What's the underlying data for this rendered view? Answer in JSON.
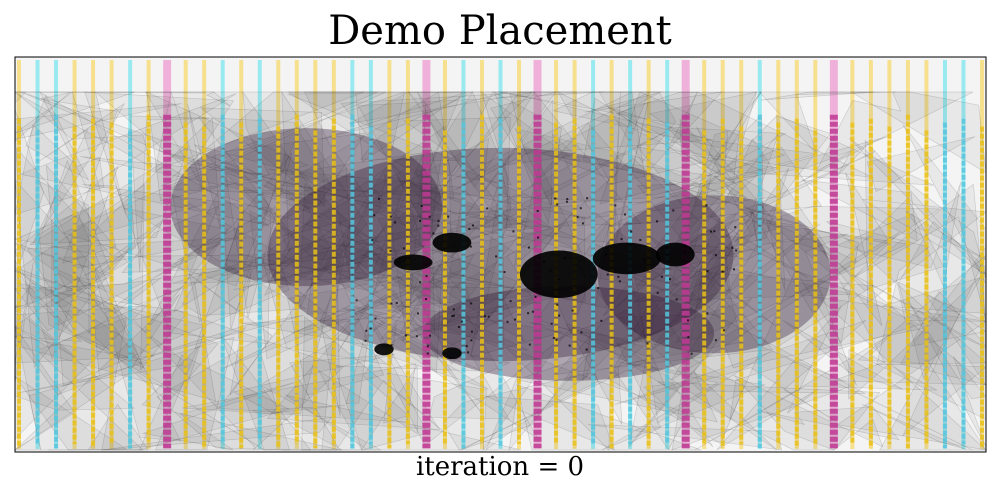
{
  "title": "Demo Placement",
  "caption": "iteration = 0",
  "chart_data": {
    "type": "scatter",
    "title": "Demo Placement",
    "xlabel": "iteration = 0",
    "ylabel": "",
    "grid": false,
    "legend": "none",
    "colors": {
      "background": "#f4f4f4",
      "net": "#5a5a5a",
      "cluster": "#2b1530",
      "dense": "#000000",
      "cell_yellow": "#e9c21c",
      "cell_cyan": "#59c6de",
      "cell_magenta": "#c03a94",
      "row_yellow": "#f6dd82",
      "row_cyan": "#8fe9f0",
      "row_magenta": "#eeaad6"
    },
    "columns": [
      {
        "type": "yellow",
        "y0": 0.06,
        "y1": 0.99
      },
      {
        "type": "cyan",
        "y0": 0.09,
        "y1": 0.98
      },
      {
        "type": "cyan",
        "y0": 0.05,
        "y1": 0.99
      },
      {
        "type": "yellow",
        "y0": 0.08,
        "y1": 0.98
      },
      {
        "type": "yellow",
        "y0": 0.06,
        "y1": 0.99
      },
      {
        "type": "yellow",
        "y0": 0.07,
        "y1": 0.98
      },
      {
        "type": "cyan",
        "y0": 0.09,
        "y1": 0.99
      },
      {
        "type": "yellow",
        "y0": 0.05,
        "y1": 0.98
      },
      {
        "type": "magenta",
        "y0": 0.05,
        "y1": 0.99
      },
      {
        "type": "yellow",
        "y0": 0.07,
        "y1": 0.98
      },
      {
        "type": "yellow",
        "y0": 0.08,
        "y1": 0.99
      },
      {
        "type": "cyan",
        "y0": 0.05,
        "y1": 0.98
      },
      {
        "type": "yellow",
        "y0": 0.07,
        "y1": 0.99
      },
      {
        "type": "cyan",
        "y0": 0.06,
        "y1": 0.97
      },
      {
        "type": "yellow",
        "y0": 0.08,
        "y1": 0.99
      },
      {
        "type": "yellow",
        "y0": 0.05,
        "y1": 0.98
      },
      {
        "type": "yellow",
        "y0": 0.09,
        "y1": 0.99
      },
      {
        "type": "yellow",
        "y0": 0.06,
        "y1": 0.98
      },
      {
        "type": "cyan",
        "y0": 0.05,
        "y1": 0.99
      },
      {
        "type": "cyan",
        "y0": 0.08,
        "y1": 0.98
      },
      {
        "type": "yellow",
        "y0": 0.07,
        "y1": 0.99
      },
      {
        "type": "yellow",
        "y0": 0.06,
        "y1": 0.98
      },
      {
        "type": "magenta",
        "y0": 0.05,
        "y1": 0.99
      },
      {
        "type": "yellow",
        "y0": 0.09,
        "y1": 0.98
      },
      {
        "type": "cyan",
        "y0": 0.07,
        "y1": 0.99
      },
      {
        "type": "yellow",
        "y0": 0.05,
        "y1": 0.98
      },
      {
        "type": "cyan",
        "y0": 0.06,
        "y1": 0.99
      },
      {
        "type": "yellow",
        "y0": 0.08,
        "y1": 0.98
      },
      {
        "type": "magenta",
        "y0": 0.05,
        "y1": 0.99
      },
      {
        "type": "yellow",
        "y0": 0.07,
        "y1": 0.98
      },
      {
        "type": "yellow",
        "y0": 0.06,
        "y1": 0.99
      },
      {
        "type": "cyan",
        "y0": 0.09,
        "y1": 0.98
      },
      {
        "type": "yellow",
        "y0": 0.05,
        "y1": 0.99
      },
      {
        "type": "cyan",
        "y0": 0.08,
        "y1": 0.98
      },
      {
        "type": "yellow",
        "y0": 0.06,
        "y1": 0.99
      },
      {
        "type": "cyan",
        "y0": 0.07,
        "y1": 0.98
      },
      {
        "type": "magenta",
        "y0": 0.05,
        "y1": 0.99
      },
      {
        "type": "yellow",
        "y0": 0.09,
        "y1": 0.98
      },
      {
        "type": "yellow",
        "y0": 0.06,
        "y1": 0.99
      },
      {
        "type": "yellow",
        "y0": 0.08,
        "y1": 0.98
      },
      {
        "type": "cyan",
        "y0": 0.05,
        "y1": 0.99
      },
      {
        "type": "yellow",
        "y0": 0.07,
        "y1": 0.98
      },
      {
        "type": "yellow",
        "y0": 0.06,
        "y1": 0.99
      },
      {
        "type": "yellow",
        "y0": 0.09,
        "y1": 0.98
      },
      {
        "type": "magenta",
        "y0": 0.05,
        "y1": 0.99
      },
      {
        "type": "yellow",
        "y0": 0.07,
        "y1": 0.98
      },
      {
        "type": "yellow",
        "y0": 0.06,
        "y1": 0.99
      },
      {
        "type": "yellow",
        "y0": 0.08,
        "y1": 0.98
      },
      {
        "type": "yellow",
        "y0": 0.05,
        "y1": 0.99
      },
      {
        "type": "yellow",
        "y0": 0.09,
        "y1": 0.98
      },
      {
        "type": "cyan",
        "y0": 0.07,
        "y1": 0.99
      },
      {
        "type": "cyan",
        "y0": 0.06,
        "y1": 0.98
      },
      {
        "type": "yellow",
        "y0": 0.08,
        "y1": 0.99
      }
    ],
    "clusters": [
      {
        "x": 0.56,
        "y": 0.55,
        "rx": 0.04,
        "ry": 0.06,
        "kind": "dense"
      },
      {
        "x": 0.63,
        "y": 0.51,
        "rx": 0.035,
        "ry": 0.04,
        "kind": "dense"
      },
      {
        "x": 0.45,
        "y": 0.47,
        "rx": 0.02,
        "ry": 0.025,
        "kind": "dense"
      },
      {
        "x": 0.41,
        "y": 0.52,
        "rx": 0.02,
        "ry": 0.02,
        "kind": "dense"
      },
      {
        "x": 0.68,
        "y": 0.5,
        "rx": 0.02,
        "ry": 0.03,
        "kind": "dense"
      },
      {
        "x": 0.38,
        "y": 0.74,
        "rx": 0.01,
        "ry": 0.015,
        "kind": "dense"
      },
      {
        "x": 0.45,
        "y": 0.75,
        "rx": 0.01,
        "ry": 0.015,
        "kind": "dense"
      },
      {
        "x": 0.5,
        "y": 0.5,
        "rx": 0.24,
        "ry": 0.27,
        "kind": "cluster"
      },
      {
        "x": 0.3,
        "y": 0.38,
        "rx": 0.14,
        "ry": 0.2,
        "kind": "cluster"
      },
      {
        "x": 0.72,
        "y": 0.55,
        "rx": 0.12,
        "ry": 0.2,
        "kind": "cluster"
      },
      {
        "x": 0.57,
        "y": 0.7,
        "rx": 0.15,
        "ry": 0.12,
        "kind": "cluster"
      }
    ]
  }
}
